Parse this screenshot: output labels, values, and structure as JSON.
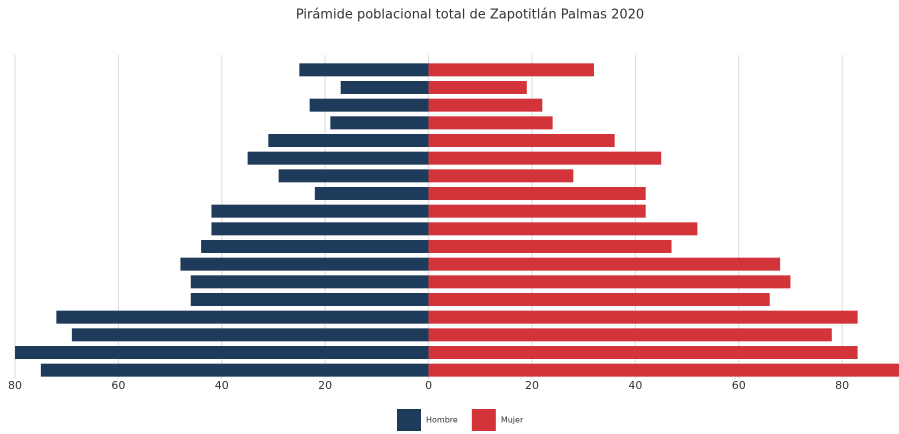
{
  "chart_data": {
    "type": "pyramid",
    "title": "Pirámide poblacional total de Zapotitlán Palmas 2020",
    "series": [
      {
        "name": "Hombre",
        "color": "#1f3b5c",
        "values": [
          -25,
          -17,
          -23,
          -19,
          -31,
          -35,
          -29,
          -22,
          -42,
          -42,
          -44,
          -48,
          -46,
          -46,
          -72,
          -69,
          -80,
          -75
        ]
      },
      {
        "name": "Mujer",
        "color": "#d2343a",
        "values": [
          32,
          19,
          22,
          24,
          36,
          45,
          28,
          42,
          42,
          52,
          47,
          68,
          70,
          66,
          83,
          78,
          83,
          91
        ]
      }
    ],
    "xlim": [
      -80,
      91
    ],
    "xticks": [
      {
        "value": -80,
        "label": "80"
      },
      {
        "value": -60,
        "label": "60"
      },
      {
        "value": -40,
        "label": "40"
      },
      {
        "value": -20,
        "label": "20"
      },
      0,
      20,
      40,
      60,
      80
    ],
    "grid": true,
    "legend": "bottom"
  }
}
